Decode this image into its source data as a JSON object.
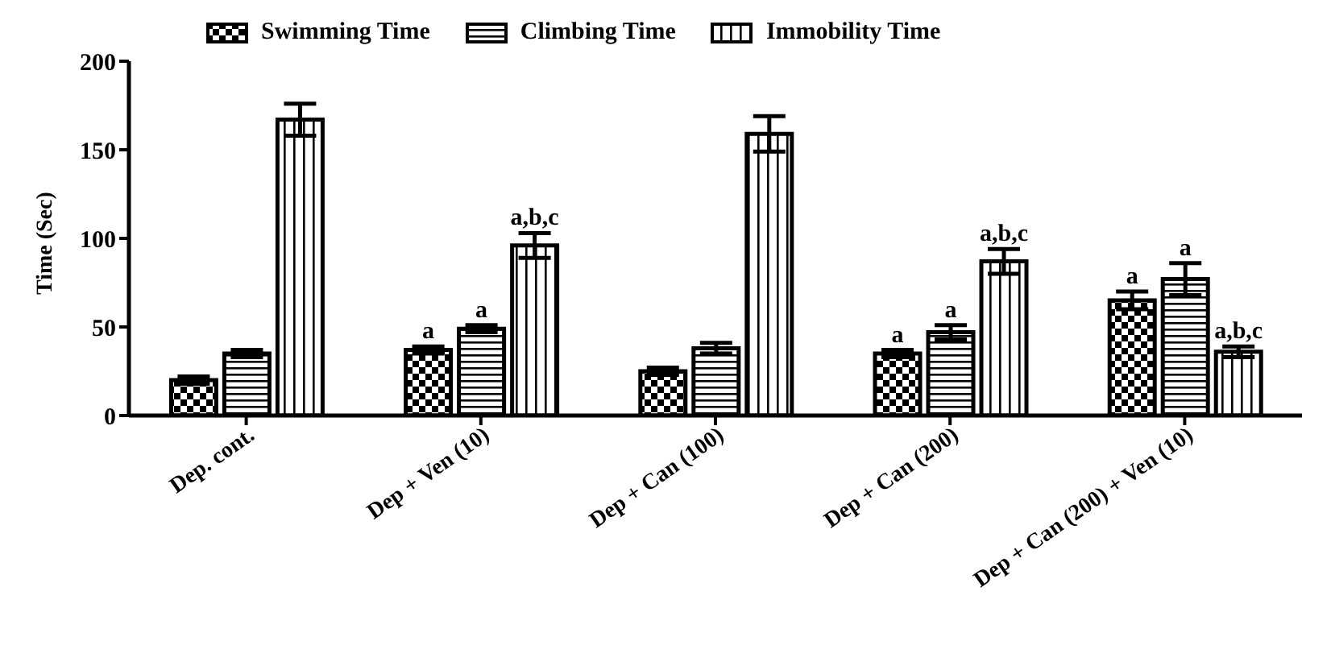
{
  "chart_data": {
    "type": "bar",
    "ylabel": "Time (Sec)",
    "categories": [
      "Dep. cont.",
      "Dep + Ven (10)",
      "Dep + Can (100)",
      "Dep + Can (200)",
      "Dep + Can (200) + Ven (10)"
    ],
    "series": [
      {
        "name": "Swimming Time",
        "color": "#000000",
        "values": [
          20,
          37,
          25,
          35,
          65
        ],
        "errors": [
          2,
          2,
          2,
          2,
          5
        ],
        "value_labels": [
          null,
          "a",
          null,
          "a",
          "a"
        ]
      },
      {
        "name": "Climbing Time",
        "color": "#000000",
        "values": [
          35,
          49,
          38,
          47,
          77
        ],
        "errors": [
          2,
          2,
          3,
          4,
          9
        ],
        "value_labels": [
          null,
          "a",
          null,
          "a",
          "a"
        ]
      },
      {
        "name": "Immobility Time",
        "color": "#000000",
        "values": [
          167,
          96,
          159,
          87,
          36
        ],
        "errors": [
          9,
          7,
          10,
          7,
          3
        ],
        "value_labels": [
          null,
          "a,b,c",
          null,
          "a,b,c",
          "a,b,c"
        ]
      }
    ],
    "ylim": [
      0,
      200
    ],
    "yticks": [
      0,
      50,
      100,
      150,
      200
    ],
    "grid": false,
    "legend": "top"
  }
}
